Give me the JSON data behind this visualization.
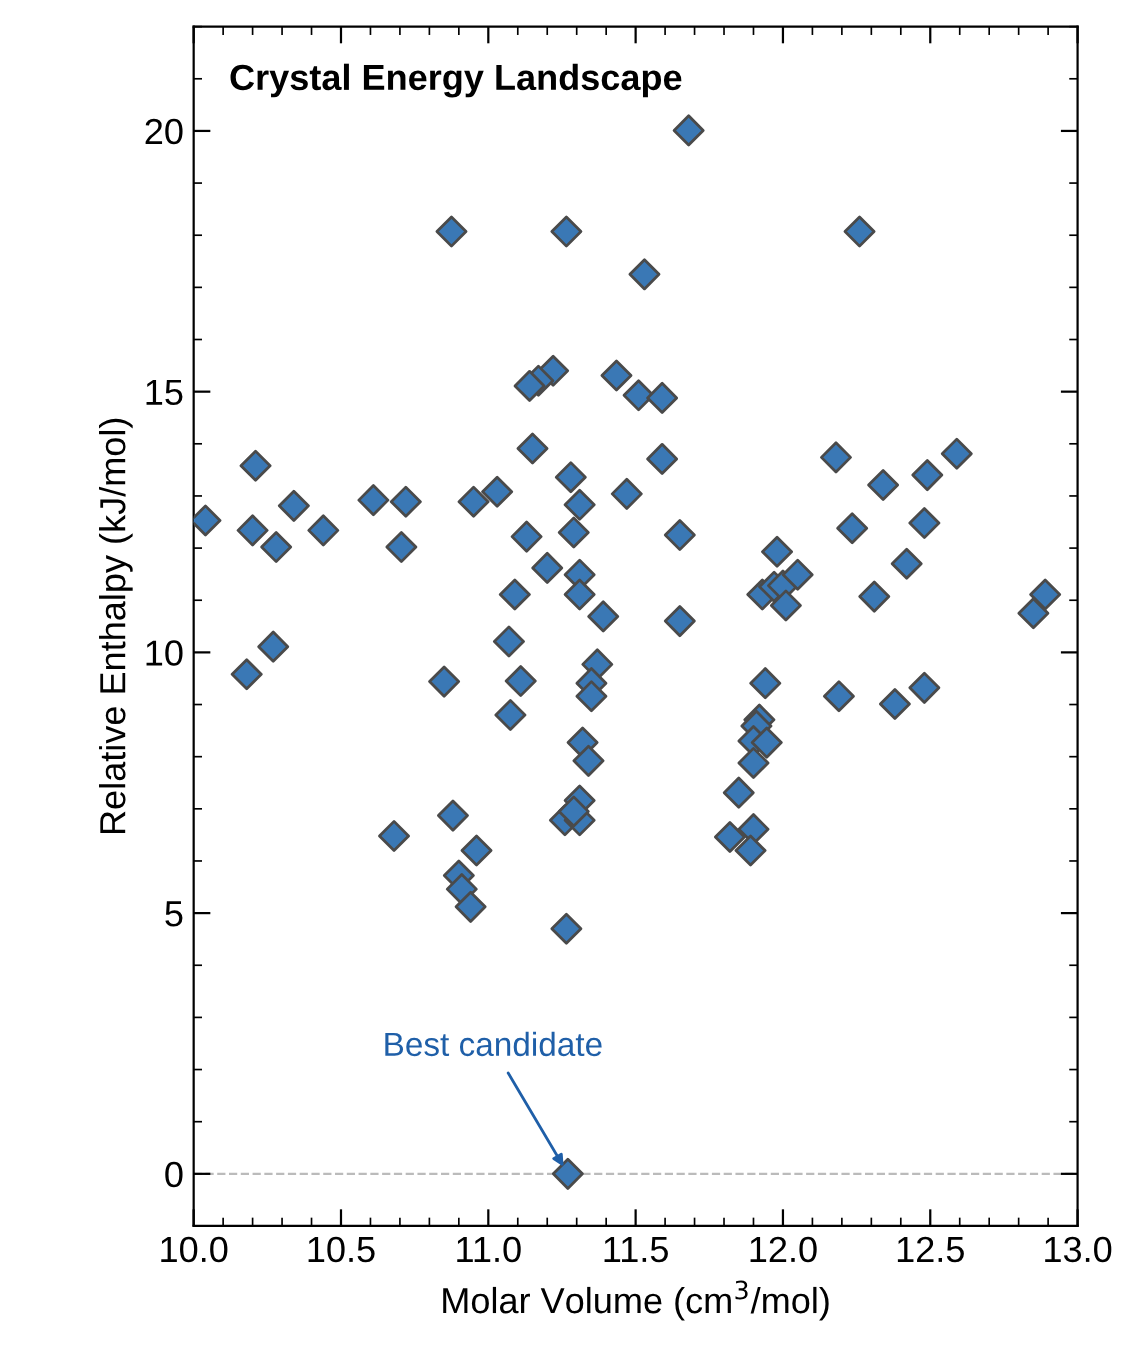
{
  "chart_data": {
    "type": "scatter",
    "title": "Crystal Energy Landscape",
    "xlabel": "Molar Volume (cm$^{3}$/mol)",
    "ylabel": "Relative Enthalpy (kJ/mol)",
    "x": [
      10.875,
      11.265,
      11.22,
      11.17,
      11.14,
      11.435,
      11.15,
      10.21,
      11.28,
      11.03,
      11.47,
      10.34,
      10.61,
      10.72,
      10.95,
      11.31,
      10.04,
      10.2,
      10.44,
      11.29,
      10.28,
      10.705,
      11.13,
      11.2,
      11.31,
      11.09,
      11.31,
      11.39,
      10.27,
      11.07,
      11.68,
      12.26,
      11.53,
      11.51,
      11.59,
      11.59,
      12.18,
      12.59,
      12.34,
      12.49,
      11.65,
      12.235,
      12.48,
      11.98,
      12.42,
      11.93,
      11.97,
      12.0,
      12.05,
      12.01,
      12.31,
      12.89,
      12.85,
      11.65,
      10.18,
      10.85,
      11.11,
      11.075,
      11.37,
      11.35,
      11.35,
      11.32,
      11.34,
      11.31,
      11.26,
      11.31,
      11.29,
      10.88,
      10.68,
      10.96,
      10.9,
      10.91,
      10.94,
      11.265,
      11.27,
      11.94,
      12.19,
      12.38,
      12.48,
      11.92,
      11.91,
      11.9,
      11.945,
      11.9,
      11.85,
      11.82,
      11.9,
      11.89
    ],
    "values": [
      18.07,
      18.07,
      15.4,
      15.21,
      15.11,
      15.31,
      13.91,
      13.58,
      13.36,
      13.08,
      13.04,
      12.81,
      12.92,
      12.89,
      12.89,
      12.83,
      12.53,
      12.34,
      12.34,
      12.3,
      12.02,
      12.02,
      12.22,
      11.62,
      11.49,
      11.11,
      11.11,
      10.69,
      10.11,
      10.21,
      20.01,
      18.07,
      17.25,
      14.93,
      14.88,
      13.71,
      13.74,
      13.81,
      13.21,
      13.4,
      12.25,
      12.38,
      12.48,
      11.93,
      11.7,
      11.11,
      11.26,
      11.28,
      11.49,
      10.9,
      11.07,
      11.11,
      10.75,
      10.6,
      9.58,
      9.44,
      9.45,
      8.8,
      9.77,
      9.41,
      9.16,
      8.27,
      7.92,
      7.16,
      6.78,
      6.78,
      6.95,
      6.87,
      6.48,
      6.2,
      5.72,
      5.46,
      5.12,
      4.7,
      0.0,
      9.41,
      9.16,
      9.01,
      9.32,
      8.71,
      8.59,
      8.3,
      8.27,
      7.88,
      7.31,
      6.46,
      6.61,
      6.2
    ],
    "color": "#3a78b5",
    "marker": "diamond",
    "xlim": [
      10,
      13
    ],
    "ylim": [
      -1,
      22
    ],
    "xticks": [
      {
        "value": 10,
        "label": "10.0"
      },
      {
        "value": 10.5,
        "label": "10.5"
      },
      {
        "value": 11,
        "label": "11.0"
      },
      {
        "value": 11.5,
        "label": "11.5"
      },
      {
        "value": 12,
        "label": "12.0"
      },
      {
        "value": 12.5,
        "label": "12.5"
      },
      {
        "value": 13,
        "label": "13.0"
      }
    ],
    "yticks": [
      0,
      5,
      10,
      15,
      20
    ],
    "ref_lines": [
      {
        "axis": "y",
        "value": 0,
        "color": "#bbbbbb",
        "line_style": "dashed"
      }
    ],
    "annotations": [
      {
        "text": "Best candidate",
        "x": 11.27,
        "y": 0.0
      }
    ],
    "grid": false
  }
}
